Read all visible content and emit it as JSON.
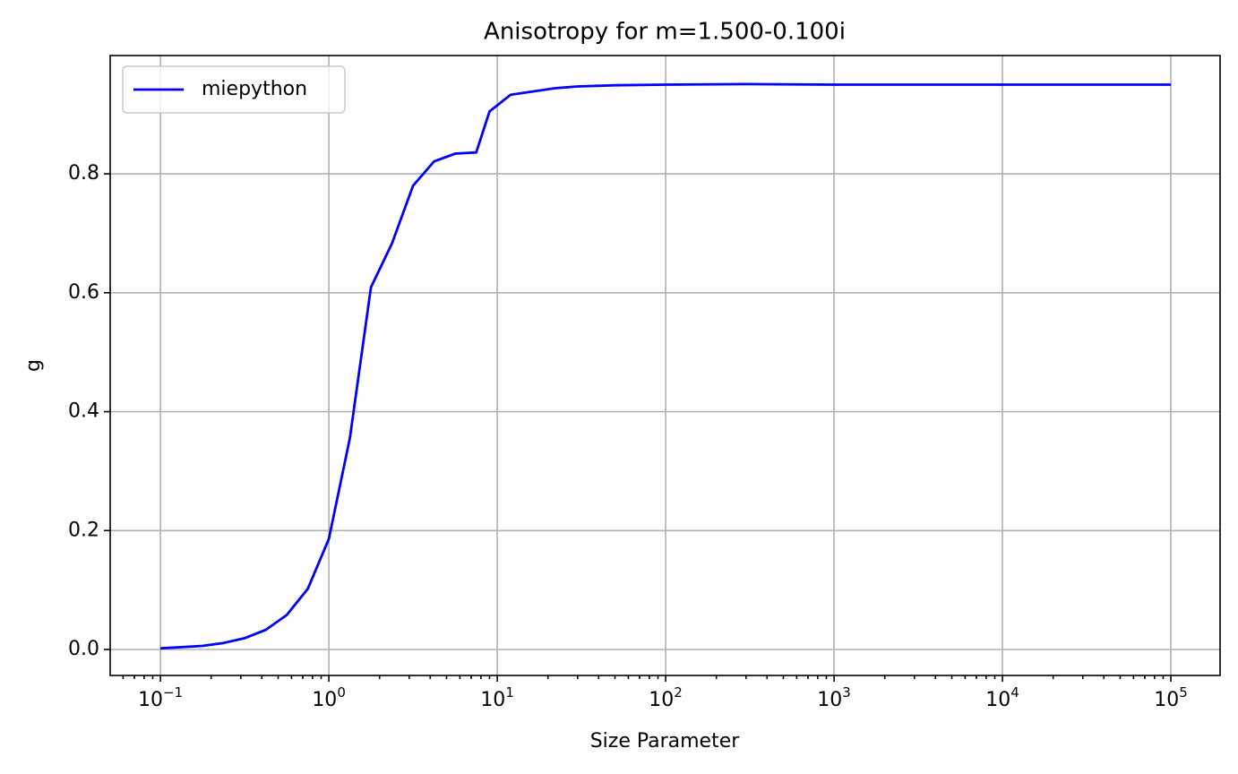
{
  "chart_data": {
    "type": "line",
    "title": "Anisotropy for m=1.500-0.100i",
    "x_label": "Size Parameter",
    "y_label": "g",
    "x_scale": "log",
    "grid": true,
    "legend": "upper left",
    "x": [
      0.1,
      0.1334,
      0.1778,
      0.2371,
      0.3162,
      0.4217,
      0.5623,
      0.7499,
      1.0,
      1.334,
      1.778,
      2.371,
      3.162,
      4.217,
      5.623,
      7.499,
      9.0,
      12,
      22,
      30,
      50,
      100,
      300,
      1000,
      10000,
      100000
    ],
    "series": [
      {
        "name": "miepython",
        "color": "#0000ff",
        "values": [
          0.002,
          0.004,
          0.006,
          0.011,
          0.019,
          0.033,
          0.058,
          0.102,
          0.186,
          0.356,
          0.609,
          0.683,
          0.78,
          0.821,
          0.834,
          0.836,
          0.905,
          0.933,
          0.944,
          0.947,
          0.949,
          0.95,
          0.951,
          0.95,
          0.95,
          0.95
        ]
      }
    ],
    "xlim": [
      0.0503,
      196000
    ],
    "xticks": [
      {
        "value": 0.1,
        "label": "10−1"
      },
      {
        "value": 1,
        "label": "100"
      },
      {
        "value": 10,
        "label": "101"
      },
      {
        "value": 100,
        "label": "102"
      },
      {
        "value": 1000,
        "label": "103"
      },
      {
        "value": 10000,
        "label": "104"
      },
      {
        "value": 100000,
        "label": "105"
      }
    ],
    "ylim": [
      -0.0437,
      0.999
    ],
    "yticks": [
      {
        "value": 0,
        "label": "0.0"
      },
      0.2,
      0.4,
      0.6,
      0.8
    ]
  }
}
